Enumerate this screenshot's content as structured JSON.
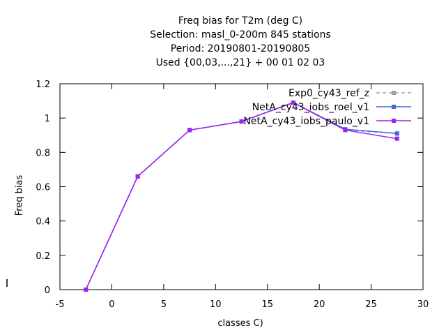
{
  "chart_data": {
    "type": "line",
    "title_lines": [
      "Freq bias  for T2m (deg C)",
      "Selection: masl_0-200m    845 stations",
      "Period: 20190801-20190805",
      "Used {00,03,...,21} + 00 01 02 03"
    ],
    "xlabel": "classes C)",
    "ylabel": "Freq bias",
    "xlim": [
      -5,
      30
    ],
    "ylim": [
      0,
      1.2
    ],
    "xticks": [
      -5,
      0,
      5,
      10,
      15,
      20,
      25,
      30
    ],
    "xtick_labels": [
      "-5",
      "0",
      "5",
      "10",
      "15",
      "20",
      "25",
      "30"
    ],
    "yticks": [
      0,
      0.2,
      0.4,
      0.6,
      0.8,
      1,
      1.2
    ],
    "ytick_labels": [
      "0",
      "0.2",
      "0.4",
      "0.6",
      "0.8",
      "1",
      "1.2"
    ],
    "legend_position": "top-right",
    "grid": false,
    "x": [
      -2.5,
      2.5,
      7.5,
      12.5,
      17.5,
      22.5,
      27.5
    ],
    "series": [
      {
        "name": "Exp0_cy43_ref_z",
        "color": "#a0a0a0",
        "dash": true,
        "values": [
          0.0,
          0.66,
          0.93,
          0.98,
          1.09,
          0.93,
          0.91
        ]
      },
      {
        "name": "NetA_cy43_iobs_roel_v1",
        "color": "#4169e1",
        "dash": false,
        "values": [
          0.0,
          0.66,
          0.93,
          0.98,
          1.09,
          0.935,
          0.91
        ]
      },
      {
        "name": "NetA_cy43_iobs_paulo_v1",
        "color": "#a020f0",
        "dash": false,
        "values": [
          0.0,
          0.66,
          0.93,
          0.98,
          1.09,
          0.93,
          0.88
        ]
      }
    ]
  }
}
